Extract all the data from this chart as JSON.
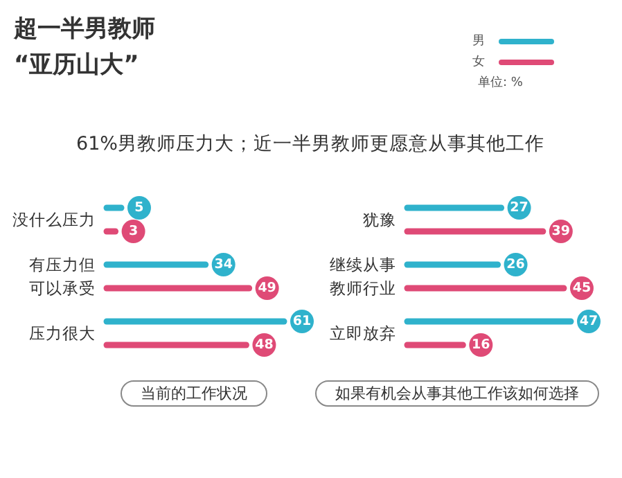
{
  "chart_data": [
    {
      "type": "bar",
      "orientation": "horizontal",
      "title": "超一半男教师\n“亚历山大”",
      "subtitle": "61%男教师压力大；近一半男教师更愿意从事其他工作",
      "annotations": [
        "单位: %"
      ],
      "legend": "top right",
      "data_labels": true,
      "xlabel": "当前的工作状况",
      "categories": [
        "没什么压力",
        "有压力但可以承受",
        "压力很大"
      ],
      "series": [
        {
          "name": "男",
          "color": "#2fb2cc",
          "values": [
            5,
            34,
            61
          ]
        },
        {
          "name": "女",
          "color": "#df4a76",
          "values": [
            3,
            49,
            48
          ]
        }
      ]
    },
    {
      "type": "bar",
      "orientation": "horizontal",
      "data_labels": true,
      "xlabel": "如果有机会从事其他工作该如何选择",
      "categories": [
        "犹豫",
        "继续从事教师行业",
        "立即放弃"
      ],
      "series": [
        {
          "color": "#2fb2cc",
          "values": [
            27,
            26,
            47
          ]
        },
        {
          "color": "#df4a76",
          "values": [
            39,
            45,
            16
          ]
        }
      ]
    }
  ]
}
